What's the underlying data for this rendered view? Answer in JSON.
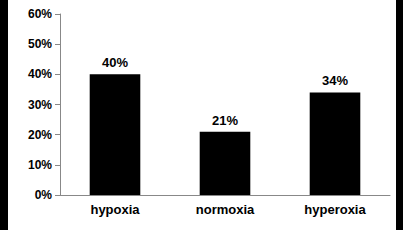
{
  "chart_data": {
    "type": "bar",
    "categories": [
      "hypoxia",
      "normoxia",
      "hyperoxia"
    ],
    "values": [
      40,
      21,
      34
    ],
    "value_labels": [
      "40%",
      "21%",
      "34%"
    ],
    "color": "#000000",
    "ylim": [
      0,
      60
    ],
    "yticks": [
      {
        "value": 0,
        "label": "0%"
      },
      {
        "value": 10,
        "label": "10%"
      },
      {
        "value": 20,
        "label": "20%"
      },
      {
        "value": 30,
        "label": "30%"
      },
      {
        "value": 40,
        "label": "40%"
      },
      {
        "value": 50,
        "label": "50%"
      },
      {
        "value": 60,
        "label": "60%"
      }
    ],
    "data_labels": true,
    "grid": false
  }
}
